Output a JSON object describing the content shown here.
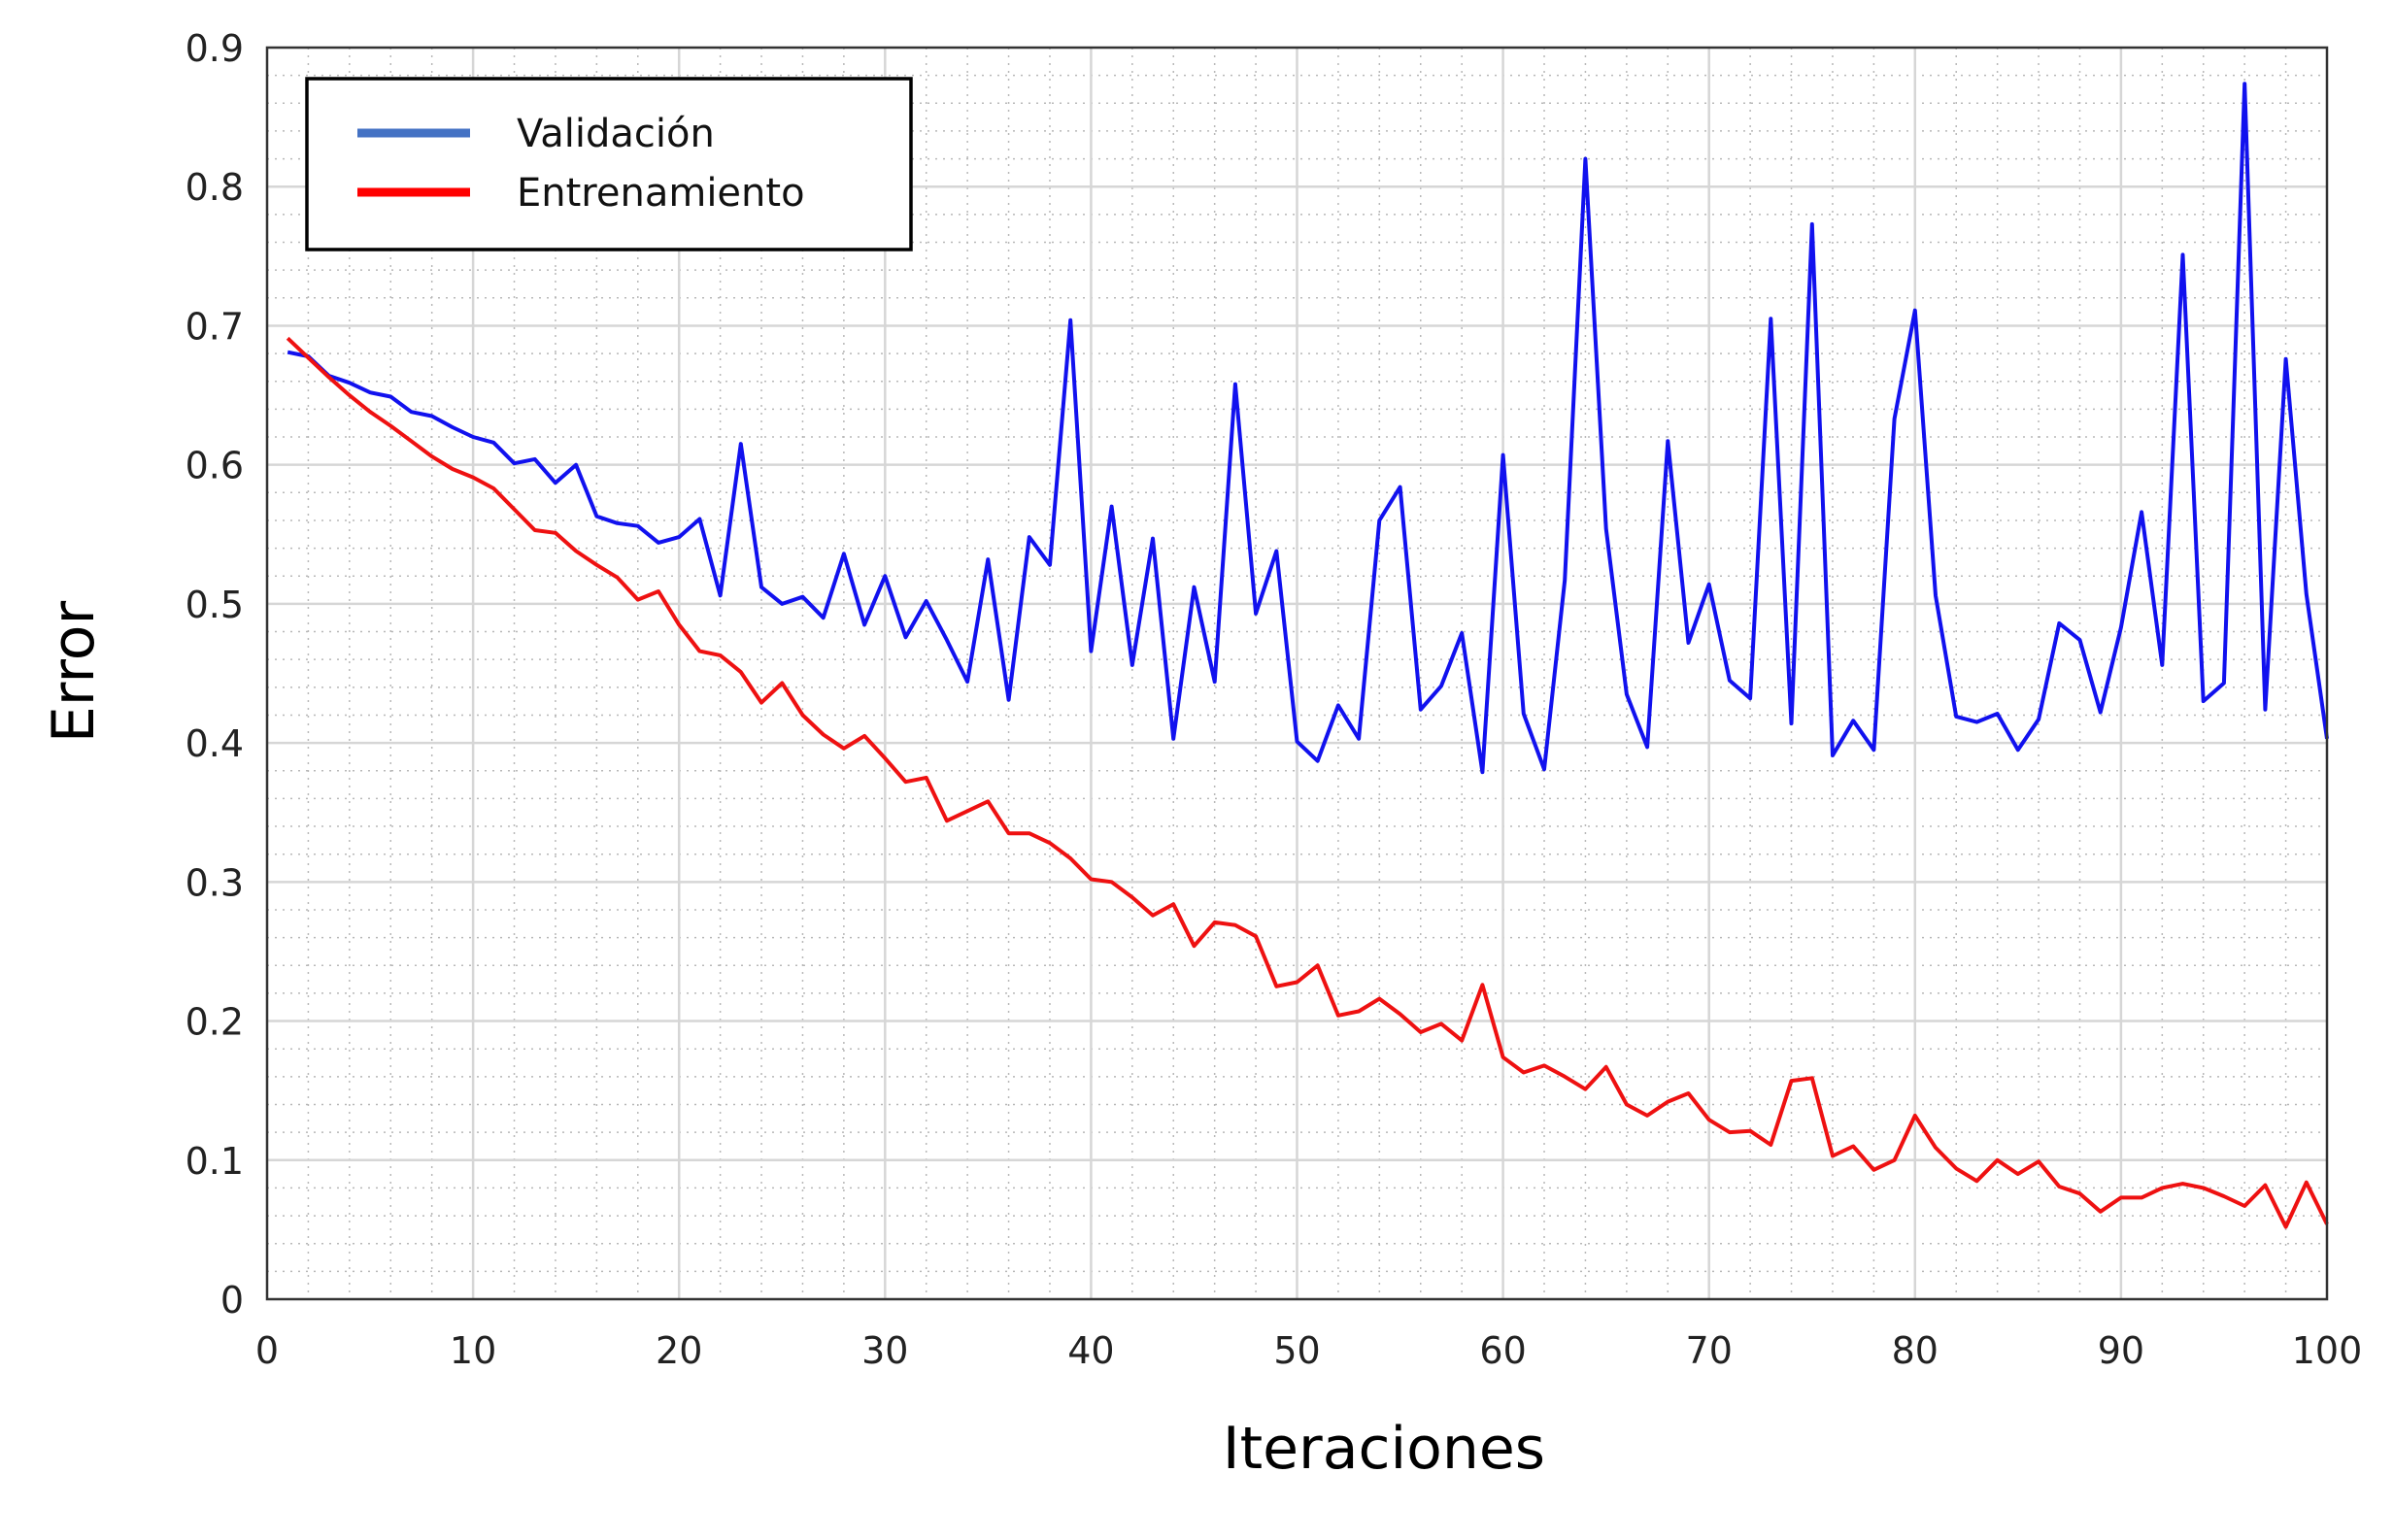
{
  "chart_data": {
    "type": "line",
    "title": "",
    "xlabel": "Iteraciones",
    "ylabel": "Error",
    "xlim": [
      0,
      100
    ],
    "ylim": [
      0,
      0.9
    ],
    "xticks": [
      "0",
      "10",
      "20",
      "30",
      "40",
      "50",
      "60",
      "70",
      "80",
      "90",
      "100"
    ],
    "yticks": [
      "0",
      "0.1",
      "0.2",
      "0.3",
      "0.4",
      "0.5",
      "0.6",
      "0.7",
      "0.8",
      "0.9"
    ],
    "grid": true,
    "legend_position": "top-left",
    "series": [
      {
        "name": "Validación",
        "color": "#1111ee",
        "legend_color": "#4472c4",
        "values": [
          0.681,
          0.678,
          0.664,
          0.659,
          0.652,
          0.649,
          0.638,
          0.635,
          0.627,
          0.62,
          0.616,
          0.601,
          0.604,
          0.587,
          0.6,
          0.563,
          0.558,
          0.556,
          0.544,
          0.548,
          0.561,
          0.506,
          0.615,
          0.512,
          0.5,
          0.505,
          0.49,
          0.536,
          0.485,
          0.52,
          0.476,
          0.502,
          0.474,
          0.444,
          0.532,
          0.431,
          0.548,
          0.528,
          0.704,
          0.466,
          0.57,
          0.456,
          0.547,
          0.403,
          0.512,
          0.444,
          0.658,
          0.493,
          0.538,
          0.401,
          0.387,
          0.427,
          0.403,
          0.56,
          0.584,
          0.424,
          0.441,
          0.479,
          0.379,
          0.607,
          0.421,
          0.381,
          0.517,
          0.82,
          0.554,
          0.435,
          0.397,
          0.617,
          0.472,
          0.514,
          0.445,
          0.432,
          0.705,
          0.414,
          0.773,
          0.391,
          0.416,
          0.395,
          0.633,
          0.711,
          0.506,
          0.419,
          0.415,
          0.421,
          0.395,
          0.417,
          0.486,
          0.474,
          0.422,
          0.483,
          0.566,
          0.456,
          0.751,
          0.43,
          0.443,
          0.874,
          0.424,
          0.676,
          0.507,
          0.403
        ]
      },
      {
        "name": "Entrenamiento",
        "color": "#ee1111",
        "legend_color": "#ff0000",
        "values": [
          0.691,
          0.677,
          0.663,
          0.65,
          0.638,
          0.628,
          0.617,
          0.606,
          0.597,
          0.591,
          0.583,
          0.568,
          0.553,
          0.551,
          0.538,
          0.528,
          0.519,
          0.503,
          0.509,
          0.485,
          0.466,
          0.463,
          0.451,
          0.429,
          0.443,
          0.42,
          0.406,
          0.396,
          0.405,
          0.389,
          0.372,
          0.375,
          0.344,
          0.351,
          0.358,
          0.335,
          0.335,
          0.328,
          0.317,
          0.302,
          0.3,
          0.289,
          0.276,
          0.284,
          0.254,
          0.271,
          0.269,
          0.261,
          0.225,
          0.228,
          0.24,
          0.204,
          0.207,
          0.216,
          0.205,
          0.192,
          0.198,
          0.186,
          0.226,
          0.174,
          0.163,
          0.168,
          0.16,
          0.151,
          0.167,
          0.14,
          0.132,
          0.142,
          0.148,
          0.129,
          0.12,
          0.121,
          0.111,
          0.157,
          0.159,
          0.103,
          0.11,
          0.093,
          0.1,
          0.132,
          0.109,
          0.094,
          0.085,
          0.1,
          0.09,
          0.099,
          0.081,
          0.076,
          0.063,
          0.073,
          0.073,
          0.08,
          0.083,
          0.08,
          0.074,
          0.067,
          0.082,
          0.052,
          0.084,
          0.054
        ]
      }
    ]
  }
}
